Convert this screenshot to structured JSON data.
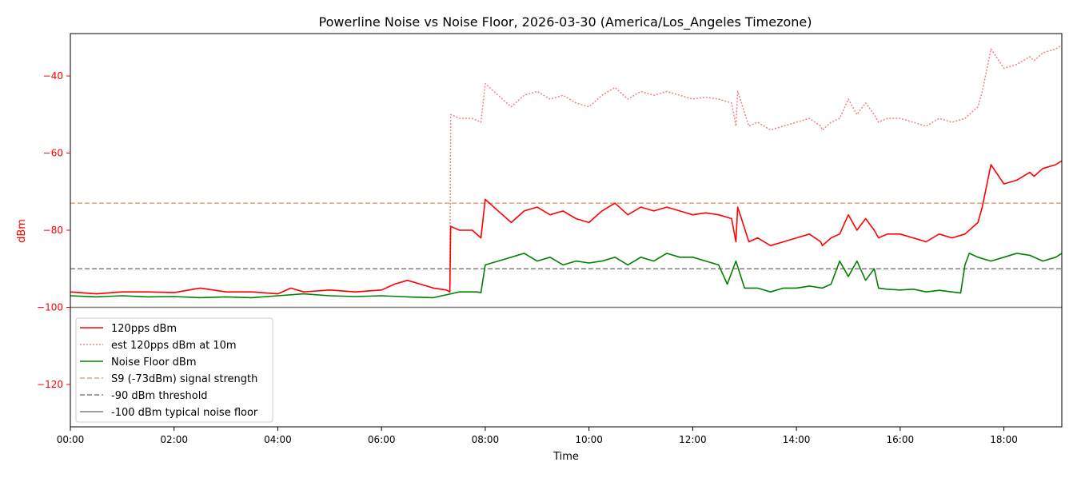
{
  "chart_data": {
    "type": "line",
    "title": "Powerline Noise vs Noise Floor, 2026-03-30 (America/Los_Angeles Timezone)",
    "xlabel": "Time",
    "ylabel": "dBm",
    "x_unit": "hours",
    "xlim": [
      "00:00",
      "19:07"
    ],
    "ylim": [
      -131,
      -29
    ],
    "x_ticks": [
      "00:00",
      "02:00",
      "04:00",
      "06:00",
      "08:00",
      "10:00",
      "12:00",
      "14:00",
      "16:00",
      "18:00"
    ],
    "y_ticks": [
      -40,
      -60,
      -80,
      -100,
      -120
    ],
    "grid": false,
    "legend_position": "lower-left",
    "colors": {
      "ylabel": "#ff0000",
      "ytick": "#ff0000"
    },
    "series": [
      {
        "name": "120pps dBm",
        "color": "#ff0000",
        "style": "solid",
        "x": [
          "00:00",
          "00:30",
          "01:00",
          "01:30",
          "02:00",
          "02:30",
          "03:00",
          "03:30",
          "04:00",
          "04:15",
          "04:30",
          "05:00",
          "05:30",
          "06:00",
          "06:15",
          "06:30",
          "06:45",
          "07:00",
          "07:15",
          "07:19",
          "07:20",
          "07:30",
          "07:45",
          "07:55",
          "08:00",
          "08:10",
          "08:20",
          "08:30",
          "08:45",
          "09:00",
          "09:15",
          "09:30",
          "09:45",
          "10:00",
          "10:15",
          "10:30",
          "10:45",
          "11:00",
          "11:15",
          "11:30",
          "11:45",
          "12:00",
          "12:15",
          "12:30",
          "12:45",
          "12:50",
          "12:52",
          "12:55",
          "13:05",
          "13:15",
          "13:30",
          "13:45",
          "14:00",
          "14:15",
          "14:28",
          "14:30",
          "14:40",
          "14:50",
          "15:00",
          "15:10",
          "15:20",
          "15:30",
          "15:35",
          "15:45",
          "16:00",
          "16:15",
          "16:30",
          "16:45",
          "17:00",
          "17:15",
          "17:30",
          "17:35",
          "17:45",
          "18:00",
          "18:15",
          "18:30",
          "18:35",
          "18:45",
          "19:00",
          "19:07"
        ],
        "y": [
          -96,
          -96.5,
          -96,
          -96,
          -96.2,
          -95,
          -96,
          -96,
          -96.5,
          -95,
          -96,
          -95.5,
          -96,
          -95.5,
          -94,
          -93,
          -94,
          -95,
          -95.5,
          -96,
          -79,
          -80,
          -80,
          -82,
          -72,
          -74,
          -76,
          -78,
          -75,
          -74,
          -76,
          -75,
          -77,
          -78,
          -75,
          -73,
          -76,
          -74,
          -75,
          -74,
          -75,
          -76,
          -75.5,
          -76,
          -77,
          -83,
          -74,
          -76,
          -83,
          -82,
          -84,
          -83,
          -82,
          -81,
          -83,
          -84,
          -82,
          -81,
          -76,
          -80,
          -77,
          -80,
          -82,
          -81,
          -81,
          -82,
          -83,
          -81,
          -82,
          -81,
          -78,
          -74,
          -63,
          -68,
          -67,
          -65,
          -66,
          -64,
          -63,
          -62
        ]
      },
      {
        "name": "est 120pps dBm at 10m",
        "color": "#f08080",
        "style": "dotted",
        "x": [
          "00:00",
          "00:30",
          "01:00",
          "01:30",
          "02:00",
          "02:30",
          "03:00",
          "03:30",
          "04:00",
          "04:15",
          "04:30",
          "05:00",
          "05:30",
          "06:00",
          "06:15",
          "06:30",
          "06:45",
          "07:00",
          "07:15",
          "07:19",
          "07:20",
          "07:30",
          "07:45",
          "07:55",
          "08:00",
          "08:10",
          "08:20",
          "08:30",
          "08:45",
          "09:00",
          "09:15",
          "09:30",
          "09:45",
          "10:00",
          "10:15",
          "10:30",
          "10:45",
          "11:00",
          "11:15",
          "11:30",
          "11:45",
          "12:00",
          "12:15",
          "12:30",
          "12:45",
          "12:50",
          "12:52",
          "12:55",
          "13:05",
          "13:15",
          "13:30",
          "13:45",
          "14:00",
          "14:15",
          "14:28",
          "14:30",
          "14:40",
          "14:50",
          "15:00",
          "15:10",
          "15:20",
          "15:30",
          "15:35",
          "15:45",
          "16:00",
          "16:15",
          "16:30",
          "16:45",
          "17:00",
          "17:15",
          "17:30",
          "17:35",
          "17:45",
          "18:00",
          "18:15",
          "18:30",
          "18:35",
          "18:45",
          "19:00",
          "19:07"
        ],
        "y": [
          -96,
          -96.5,
          -96,
          -96,
          -96.2,
          -95,
          -96,
          -96,
          -96.5,
          -95,
          -96,
          -95.5,
          -96,
          -95.5,
          -94,
          -93,
          -94,
          -95,
          -95.5,
          -96,
          -50,
          -51,
          -51,
          -52,
          -42,
          -44,
          -46,
          -48,
          -45,
          -44,
          -46,
          -45,
          -47,
          -48,
          -45,
          -43,
          -46,
          -44,
          -45,
          -44,
          -45,
          -46,
          -45.5,
          -46,
          -47,
          -53,
          -44,
          -46,
          -53,
          -52,
          -54,
          -53,
          -52,
          -51,
          -53,
          -54,
          -52,
          -51,
          -46,
          -50,
          -47,
          -50,
          -52,
          -51,
          -51,
          -52,
          -53,
          -51,
          -52,
          -51,
          -48,
          -44,
          -33,
          -38,
          -37,
          -35,
          -36,
          -34,
          -33,
          -32
        ]
      },
      {
        "name": "Noise Floor dBm",
        "color": "#008000",
        "style": "solid",
        "x": [
          "00:00",
          "00:30",
          "01:00",
          "01:30",
          "02:00",
          "02:30",
          "03:00",
          "03:30",
          "04:00",
          "04:30",
          "05:00",
          "05:30",
          "06:00",
          "06:30",
          "07:00",
          "07:20",
          "07:30",
          "07:45",
          "07:50",
          "07:55",
          "08:00",
          "08:15",
          "08:30",
          "08:45",
          "09:00",
          "09:15",
          "09:30",
          "09:45",
          "10:00",
          "10:15",
          "10:30",
          "10:45",
          "11:00",
          "11:15",
          "11:30",
          "11:45",
          "12:00",
          "12:15",
          "12:30",
          "12:40",
          "12:50",
          "13:00",
          "13:05",
          "13:15",
          "13:30",
          "13:45",
          "14:00",
          "14:15",
          "14:30",
          "14:40",
          "14:50",
          "15:00",
          "15:10",
          "15:20",
          "15:30",
          "15:35",
          "15:45",
          "16:00",
          "16:15",
          "16:30",
          "16:45",
          "17:00",
          "17:10",
          "17:15",
          "17:20",
          "17:30",
          "17:45",
          "18:00",
          "18:15",
          "18:30",
          "18:45",
          "19:00",
          "19:07"
        ],
        "y": [
          -97,
          -97.3,
          -97,
          -97.3,
          -97.2,
          -97.5,
          -97.3,
          -97.5,
          -97,
          -96.5,
          -97,
          -97.2,
          -97,
          -97.3,
          -97.5,
          -96.5,
          -96,
          -96,
          -96,
          -96.2,
          -89,
          -88,
          -87,
          -86,
          -88,
          -87,
          -89,
          -88,
          -88.5,
          -88,
          -87,
          -89,
          -87,
          -88,
          -86,
          -87,
          -87,
          -88,
          -89,
          -94,
          -88,
          -95,
          -95,
          -95,
          -96,
          -95,
          -95,
          -94.5,
          -95,
          -94,
          -88,
          -92,
          -88,
          -93,
          -90,
          -95,
          -95.3,
          -95.5,
          -95.3,
          -96,
          -95.6,
          -96,
          -96.3,
          -89,
          -86,
          -87,
          -88,
          -87,
          -86,
          -86.5,
          -88,
          -87,
          -86
        ]
      },
      {
        "name": "S9 (-73dBm) signal strength",
        "color": "#e5a476",
        "style": "dashed",
        "x": [
          "00:00",
          "19:07"
        ],
        "y": [
          -73,
          -73
        ]
      },
      {
        "name": "-90 dBm threshold",
        "color": "#808080",
        "style": "dashed",
        "x": [
          "00:00",
          "19:07"
        ],
        "y": [
          -90,
          -90
        ]
      },
      {
        "name": "-100 dBm typical noise floor",
        "color": "#808080",
        "style": "solid",
        "x": [
          "00:00",
          "19:07"
        ],
        "y": [
          -100,
          -100
        ]
      }
    ]
  }
}
